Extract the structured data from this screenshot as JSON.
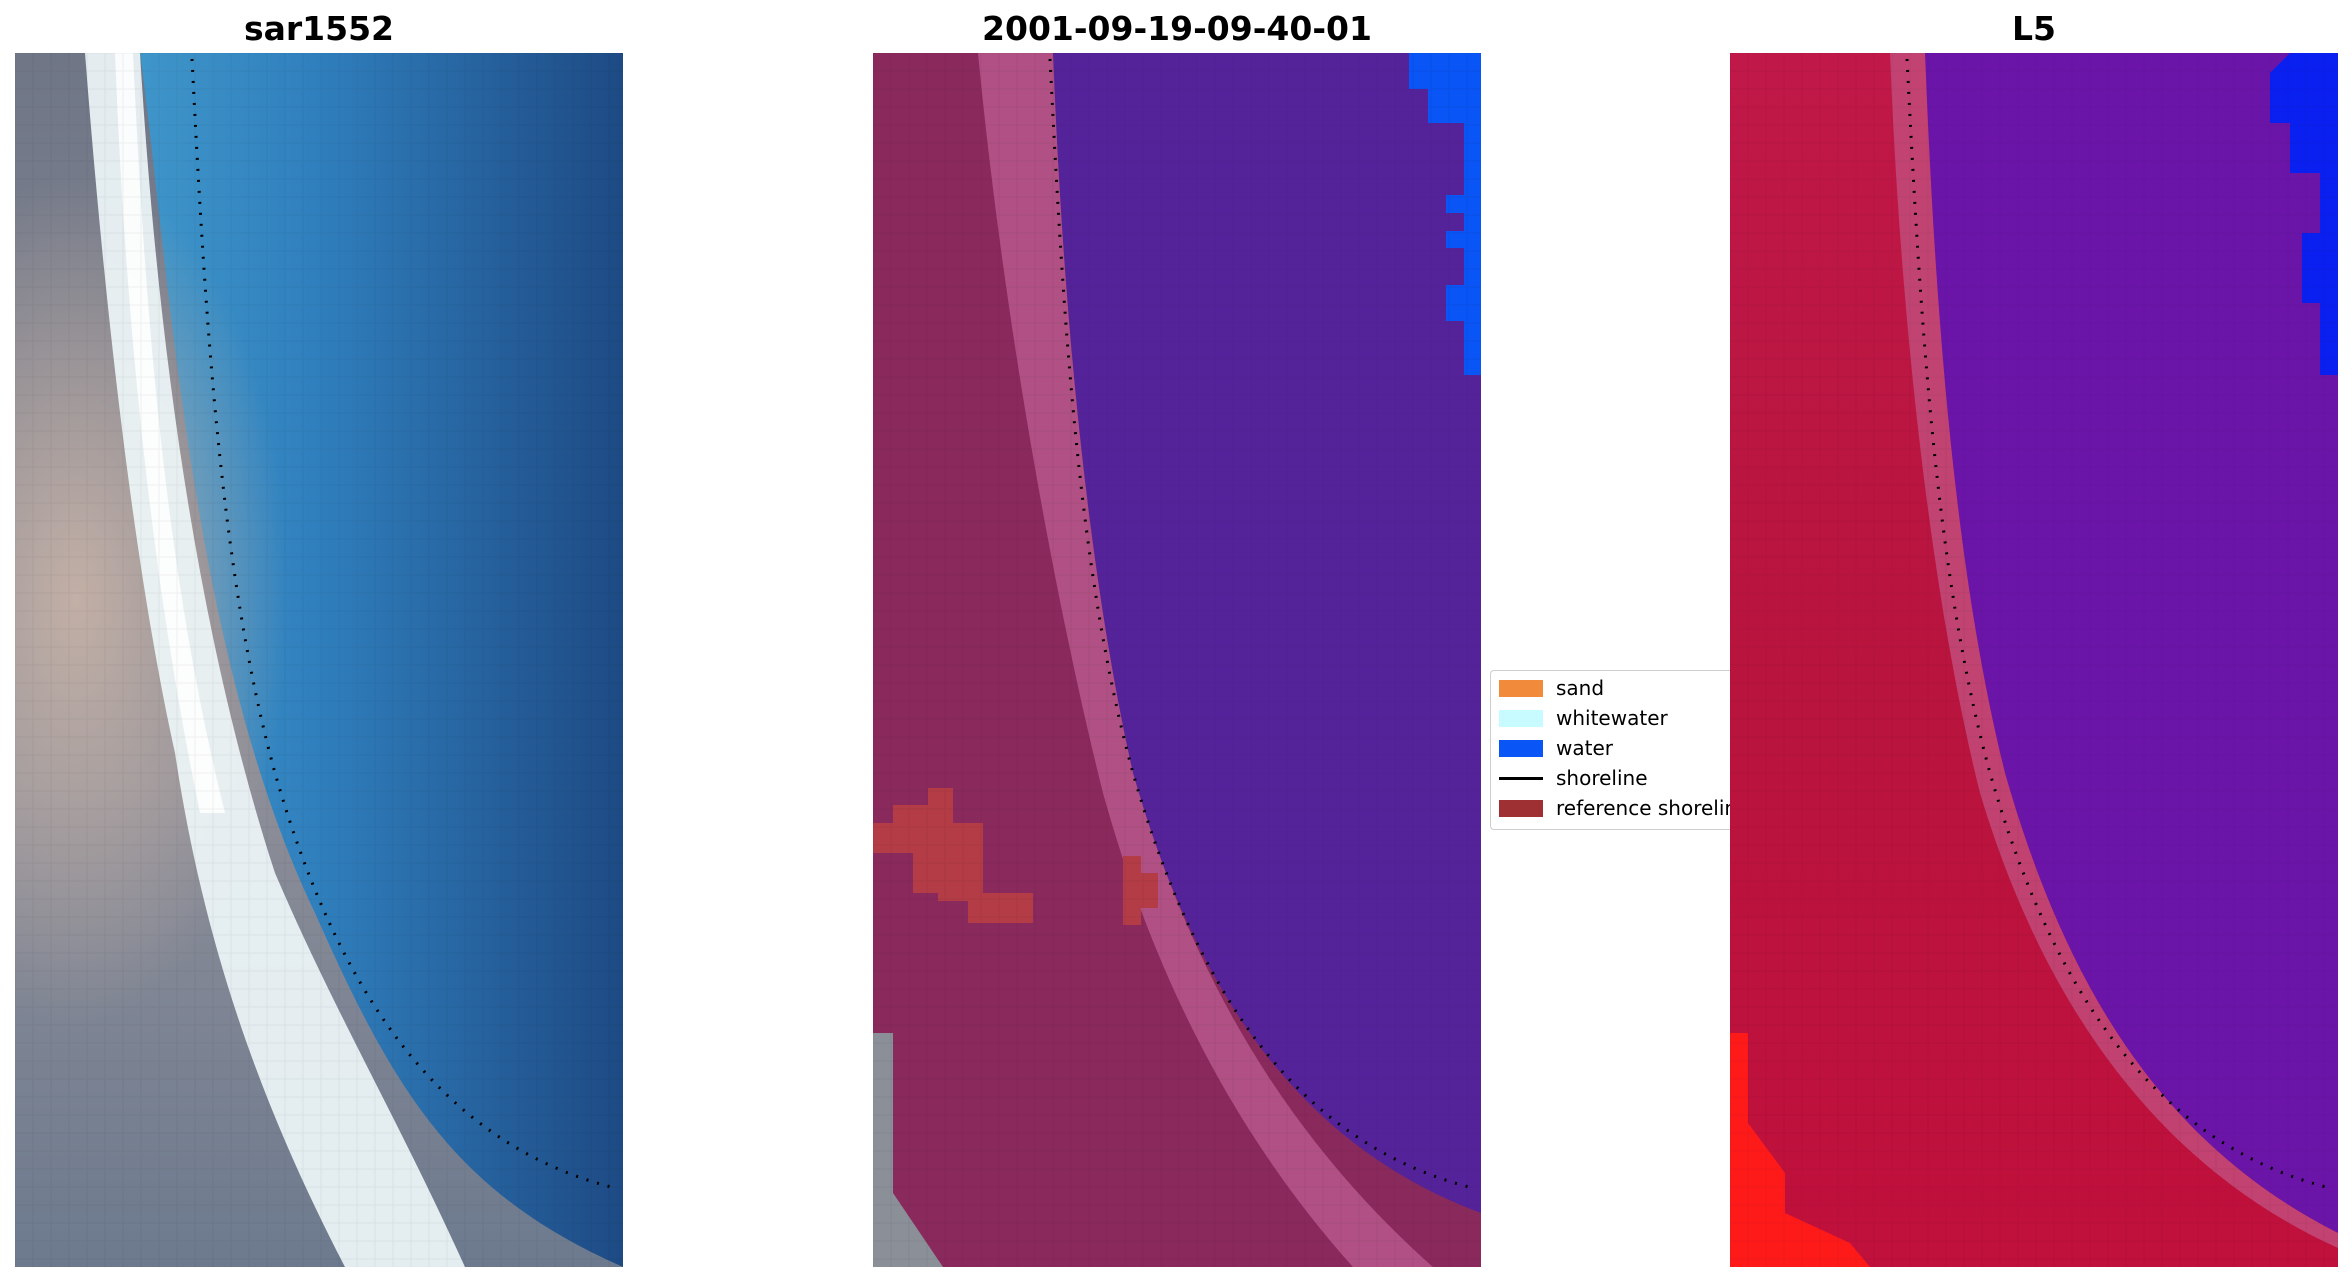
{
  "panels": [
    {
      "id": "rgb",
      "title": "sar1552"
    },
    {
      "id": "classified",
      "title": "2001-09-19-09-40-01"
    },
    {
      "id": "index",
      "title": "L5"
    }
  ],
  "legend": {
    "items": [
      {
        "label": "sand",
        "color": "#f28a3c",
        "kind": "patch"
      },
      {
        "label": "whitewater",
        "color": "#c8fbff",
        "kind": "patch"
      },
      {
        "label": "water",
        "color": "#0a55f5",
        "kind": "patch"
      },
      {
        "label": "shoreline",
        "color": "#000000",
        "kind": "line"
      },
      {
        "label": "reference shoreline",
        "color": "#9e2f32",
        "kind": "patch"
      }
    ]
  },
  "colors": {
    "ocean_dark": "#1e4a84",
    "ocean_light": "#3c98cc",
    "surf_white": "#eef6f8",
    "land_gray": "#7d8797",
    "class_water_overlay": "#54239a",
    "class_land_overlay": "#8a2a5c",
    "index_land": "#c01848",
    "index_water": "#6a14a8",
    "index_red": "#ff1a1a",
    "water_blue": "#0a55f5",
    "reference_red": "#b43c46"
  }
}
